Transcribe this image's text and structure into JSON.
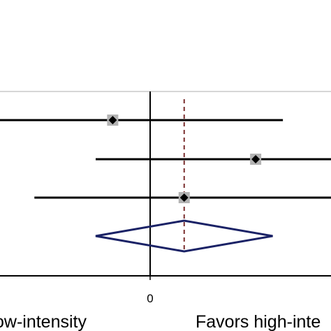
{
  "chart_data": {
    "type": "forest",
    "studies": [
      {
        "estimate": -0.55,
        "ci_low": -2.6,
        "ci_high": 1.95
      },
      {
        "estimate": 1.55,
        "ci_low": -0.8,
        "ci_high": 2.9
      },
      {
        "estimate": 0.5,
        "ci_low": -1.7,
        "ci_high": 2.9
      }
    ],
    "pooled": {
      "estimate": 0.5,
      "ci_low": -0.8,
      "ci_high": 1.8
    },
    "x_ticks": [
      {
        "value": 0,
        "label": "0"
      }
    ],
    "favor_left_label": "ow-intensity",
    "favor_right_label": "Favors high-inte",
    "xlim": [
      -2.6,
      2.9
    ],
    "colors": {
      "ci_line": "#000000",
      "marker": "#000000",
      "marker_box": "#b3b3b3",
      "pooled_diamond": "#1a2266",
      "reference_line": "#7a2e2e",
      "frame_line": "#c8c8c8"
    }
  }
}
